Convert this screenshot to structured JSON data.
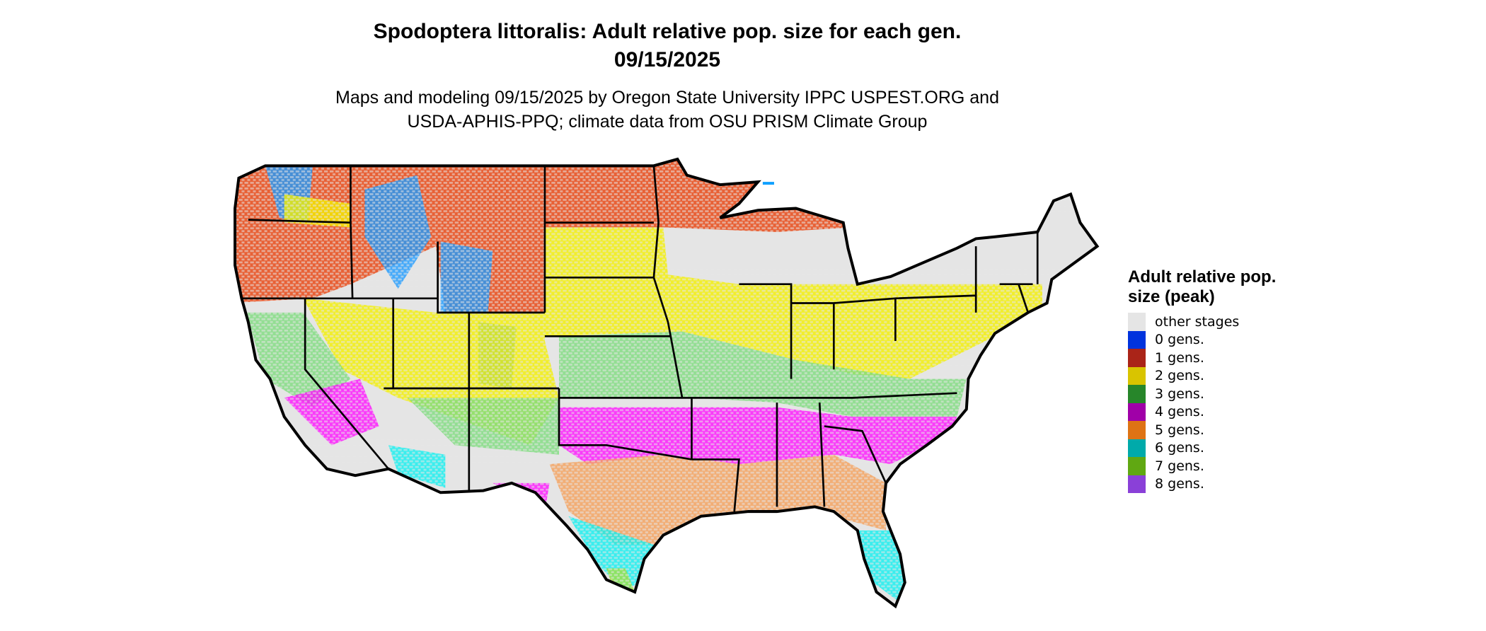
{
  "title_line1": "Spodoptera littoralis: Adult relative pop. size for each gen.",
  "title_line2": "09/15/2025",
  "subtitle_line1": "Maps and modeling 09/15/2025 by Oregon State University IPPC USPEST.ORG and",
  "subtitle_line2": "USDA-APHIS-PPQ; climate data from OSU PRISM Climate Group",
  "legend": {
    "title": "Adult relative pop. size (peak)",
    "items": [
      {
        "label": "other stages",
        "color": "#e5e5e5"
      },
      {
        "label": "0 gens.",
        "color": "#0033dd"
      },
      {
        "label": "1 gens.",
        "color": "#aa2418"
      },
      {
        "label": "2 gens.",
        "color": "#d9c400"
      },
      {
        "label": "3 gens.",
        "color": "#27862a"
      },
      {
        "label": "4 gens.",
        "color": "#a000a8"
      },
      {
        "label": "5 gens.",
        "color": "#de7314"
      },
      {
        "label": "6 gens.",
        "color": "#00aaaa"
      },
      {
        "label": "7 gens.",
        "color": "#60a812"
      },
      {
        "label": "8 gens.",
        "color": "#8a40d8"
      }
    ]
  },
  "map_colors": {
    "background": "#e5e5e5",
    "zero_gens": "#1e9bff",
    "one_gen": "#e8400a",
    "two_gens": "#f4f000",
    "three_gens": "#7edc7e",
    "four_gens": "#ff10ff",
    "five_gens": "#f5a05a",
    "six_gens": "#10f0f0",
    "seven_gens": "#a0e040"
  }
}
